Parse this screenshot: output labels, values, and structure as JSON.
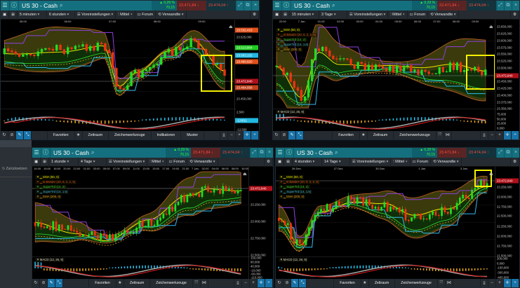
{
  "colors": {
    "header": "#14707f",
    "up": "#22dd22",
    "down": "#ee3311",
    "highlight": "#f4f000",
    "price_tag": "#b0101a"
  },
  "side": {
    "label": "Zurücksetzen",
    "icon": "reset-icon"
  },
  "panels": [
    {
      "title": "US 30 - Cash",
      "change_pct": "▲ 0,29 %",
      "change_abs": "70,15",
      "sell": "23.471,84",
      "buy": "23.474,04",
      "interval": "5 minuten",
      "range": "6 stunden",
      "presets": "Voreinstellungen",
      "mittel": "Mittel",
      "forum": "Forum",
      "related": "Verwandte",
      "times": [
        "05:00",
        "06:00",
        "07:00",
        "08:00",
        "09:00"
      ],
      "price_ticks": [
        "23.525,000",
        "23.450,000"
      ],
      "price_tags": [
        {
          "text": "23.532,415",
          "color": "#e0501a"
        },
        {
          "text": "23.513,804",
          "color": "#22cc22"
        },
        {
          "text": "23.503,132",
          "color": "#22b8e0"
        },
        {
          "text": "23.499,920",
          "color": "#e0501a"
        },
        {
          "text": "23.472,840",
          "color": "#b0101a"
        },
        {
          "text": "23.464,058",
          "color": "#c0401a"
        }
      ],
      "macd_ticks": [
        "2,500",
        "-12,500"
      ],
      "macd_tag": "-2,0011",
      "legend": [],
      "macd_label": "",
      "bottom": [
        "Favoriten",
        "Zeitraum",
        "Zeichenwerkzeuge",
        "Indikatoren",
        "Muster"
      ]
    },
    {
      "title": "US 30 - Cash",
      "change_pct": "▲ 0,29 %",
      "change_abs": "70,15",
      "sell": "23.471,84",
      "buy": "23.474,04",
      "interval": "15 minuten",
      "range": "3 Tage",
      "presets": "Voreinstellungen",
      "mittel": "Mittel",
      "forum": "Forum",
      "related": "Verwandte",
      "times": [
        "22:00",
        "7 Jan.",
        "01:00",
        "02:00",
        "03:00",
        "04:00",
        "05:00",
        "06:00",
        "07:00",
        "08:00",
        "09:00"
      ],
      "price_ticks": [
        "23.650,000",
        "23.625,000",
        "23.600,000",
        "23.575,000",
        "23.550,000",
        "23.525,000",
        "23.500,000",
        "23.450,000",
        "23.425,000",
        "23.400,000",
        "23.375,000",
        "23.350,000"
      ],
      "price_tags": [
        {
          "text": "23.472,840",
          "color": "#b0101a"
        }
      ],
      "macd_ticks": [
        "75,000",
        "50,000",
        "25,000",
        "0,000"
      ],
      "macd_tag": "",
      "legend": [
        {
          "text": "EMA (50, 0)",
          "color": "#e8e800"
        },
        {
          "text": "B Bänder (20, 0, 2, 2, 5)",
          "color": "#e05020"
        },
        {
          "text": "SuperTrd (14, 2)",
          "color": "#33dd33"
        },
        {
          "text": "SuperTrd (14, 1.5)",
          "color": "#33bbee"
        },
        {
          "text": "EMA (200, 0)",
          "color": "#e0a020"
        }
      ],
      "macd_label": "MACD (12, 26, 9)",
      "bottom": [
        "Favoriten",
        "Zeitraum",
        "Zeichenwerkzeuge"
      ]
    },
    {
      "title": "US 30 - Cash",
      "change_pct": "▲ 0,29 %",
      "change_abs": "70,15",
      "sell": "23.471,84",
      "buy": "23.474,04",
      "interval": "1 stunde",
      "range": "4 Tage",
      "presets": "Voreinstellungen",
      "mittel": "Mittel",
      "forum": "Forum",
      "related": "Verwandte",
      "times": [
        "14:00",
        "16:00",
        "18:00",
        "20:00",
        "22:00",
        "01:00",
        "03:00",
        "05:00",
        "07:00",
        "09:00",
        "11:00",
        "13:00",
        "15:00",
        "17:00",
        "19:00",
        "21:00",
        "7 Jan.",
        "02:00",
        "04:00",
        "06:00",
        "08:00",
        "10:00"
      ],
      "price_ticks": [
        "23.250,000",
        "23.000,000",
        "22.750,000",
        "22.500,000"
      ],
      "price_tags": [
        {
          "text": "23.472,840",
          "color": "#b0101a"
        }
      ],
      "macd_ticks": [
        "150,000",
        "90,000",
        "40,000",
        "-10,000",
        "-60,000",
        "-110,000"
      ],
      "macd_tag": "",
      "legend": [
        {
          "text": "EMA (50, 0)",
          "color": "#e8e800"
        },
        {
          "text": "B Bänder (20, 0, 2, 2, 5)",
          "color": "#e05020"
        },
        {
          "text": "SuperTrd (14, 2)",
          "color": "#33dd33"
        },
        {
          "text": "SuperTrd (14, 1.5)",
          "color": "#33bbee"
        },
        {
          "text": "EMA (200, 0)",
          "color": "#e0a020"
        }
      ],
      "macd_label": "MACD (12, 26, 9)",
      "bottom": [
        "Favoriten",
        "Zeitraum",
        "Zeichenwerkzeuge"
      ]
    },
    {
      "title": "US 30 - Cash",
      "change_pct": "▲ 0,29 %",
      "change_abs": "70,15",
      "sell": "23.471,84",
      "buy": "23.474,04",
      "interval": "4 stunden",
      "range": "14 Tage",
      "presets": "Voreinstellungen",
      "mittel": "Mittel",
      "forum": "Forum",
      "related": "Verwandte",
      "times": [
        "26 Dez.",
        "27 Dez.",
        "30 Dez.",
        "1 Jan.",
        "3 Jan."
      ],
      "price_ticks": [
        "23.250,000",
        "23.000,000",
        "22.750,000",
        "22.500,000",
        "22.250,000",
        "22.000,000",
        "21.750,000",
        "21.500,000"
      ],
      "price_tags": [
        {
          "text": "23.472,840",
          "color": "#b0101a"
        }
      ],
      "macd_ticks": [
        "200,000",
        "0,000",
        "-100,000",
        "-300,000",
        "-400,000"
      ],
      "macd_tag": "",
      "legend": [
        {
          "text": "EMA (50, 0)",
          "color": "#e8e800"
        },
        {
          "text": "B Bänder (20, 0, 2, 2, 5)",
          "color": "#e05020"
        },
        {
          "text": "SuperTrd (14, 2)",
          "color": "#33dd33"
        },
        {
          "text": "SuperTrd (14, 1.5)",
          "color": "#33bbee"
        },
        {
          "text": "EMA (200, 0)",
          "color": "#e0a020"
        }
      ],
      "macd_label": "MACD (12, 26, 9)",
      "bottom": [
        "Favoriten",
        "Zeitraum",
        "Zeichenwerkzeuge"
      ]
    }
  ]
}
